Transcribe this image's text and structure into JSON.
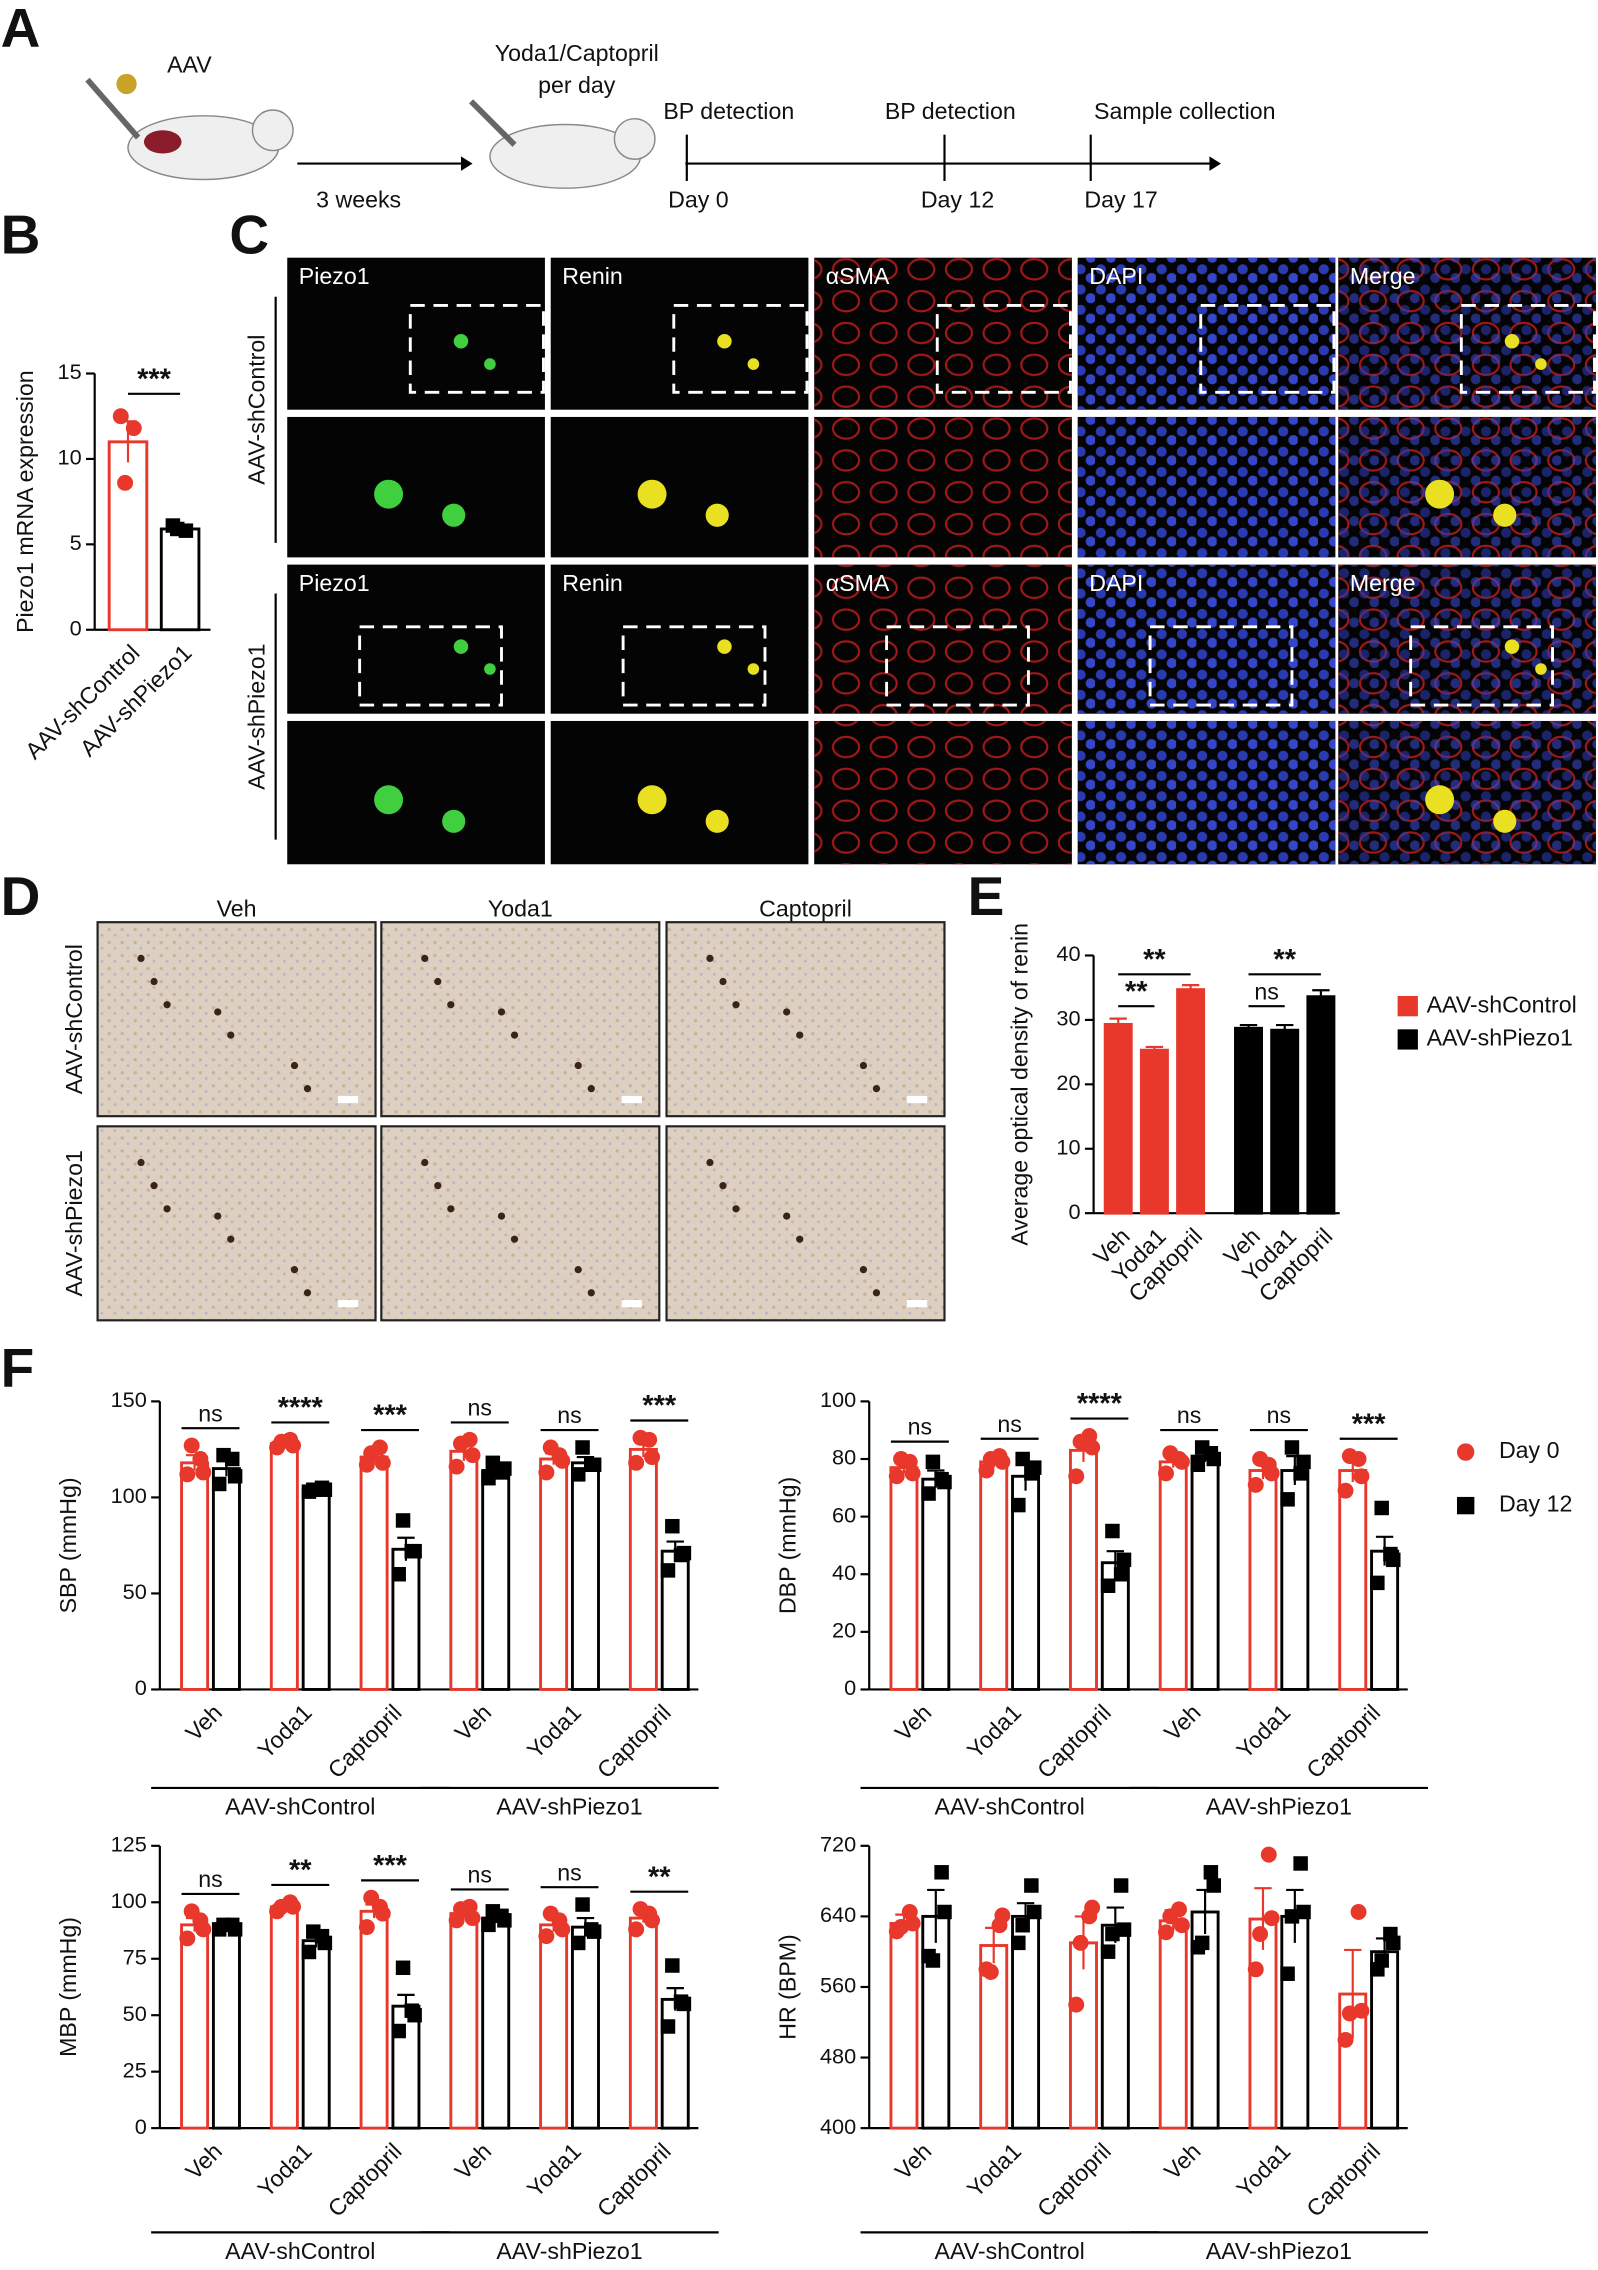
{
  "panels": [
    "A",
    "B",
    "C",
    "D",
    "E",
    "F"
  ],
  "schematic": {
    "vector": "AAV",
    "treatment": "Yoda1/Captopril",
    "frequency": "per day",
    "interval": "3 weeks",
    "events": [
      "BP detection",
      "BP detection",
      "Sample collection"
    ],
    "days": [
      "Day 0",
      "Day 12",
      "Day 17"
    ]
  },
  "staining": {
    "channels": [
      "Piezo1",
      "Renin",
      "αSMA",
      "DAPI",
      "Merge"
    ],
    "groups": [
      "AAV-shControl",
      "AAV-shPiezo1"
    ]
  },
  "ihc": {
    "columns": [
      "Veh",
      "Yoda1",
      "Captopril"
    ],
    "rows": [
      "AAV-shControl",
      "AAV-shPiezo1"
    ]
  },
  "chart_data": [
    {
      "type": "bar",
      "ylabel": "Piezo1 mRNA expression",
      "categories": [
        "AAV-shControl",
        "AAV-shPiezo1"
      ],
      "values": [
        11.0,
        5.9
      ],
      "errors": [
        1.2,
        0.2
      ],
      "points": [
        [
          12.5,
          11.8,
          8.6
        ],
        [
          6.1,
          5.8,
          5.9
        ]
      ],
      "colors": [
        "#e8372b",
        "#000000"
      ],
      "ylim": [
        0,
        15
      ],
      "yticks": [
        0,
        5,
        10,
        15
      ],
      "significance": [
        "***"
      ]
    },
    {
      "type": "bar",
      "ylabel": "Average optical density of renin",
      "categories": [
        "Veh",
        "Yoda1",
        "Captopril"
      ],
      "series": [
        {
          "name": "AAV-shControl",
          "color": "#e8372b",
          "values": [
            29.3,
            25.3,
            34.7
          ],
          "errors": [
            0.9,
            0.5,
            0.7
          ]
        },
        {
          "name": "AAV-shPiezo1",
          "color": "#000000",
          "values": [
            28.7,
            28.4,
            33.6
          ],
          "errors": [
            0.5,
            0.8,
            1.0
          ]
        }
      ],
      "ylim": [
        0,
        40
      ],
      "yticks": [
        0,
        10,
        20,
        30,
        40
      ],
      "significance": [
        "**",
        "**",
        "ns",
        "**"
      ]
    },
    {
      "type": "bar",
      "ylabel": "SBP (mmHg)",
      "categories": [
        "Veh",
        "Yoda1",
        "Captopril",
        "Veh",
        "Yoda1",
        "Captopril"
      ],
      "groups": [
        "AAV-shControl",
        "AAV-shPiezo1"
      ],
      "series": [
        {
          "name": "Day 0",
          "color": "#e8372b",
          "values": [
            118,
            128,
            121,
            124,
            120,
            125
          ],
          "errors": [
            4,
            1.5,
            3,
            5,
            3,
            4
          ],
          "points": [
            [
              112,
              120,
              127,
              113
            ],
            [
              126,
              130,
              129,
              127
            ],
            [
              117,
              126,
              123,
              118
            ],
            [
              116,
              130,
              128,
              122
            ],
            [
              113,
              122,
              126,
              119
            ],
            [
              118,
              130,
              131,
              121
            ]
          ]
        },
        {
          "name": "Day 12",
          "color": "#000000",
          "values": [
            115,
            104,
            73,
            114,
            118,
            72
          ],
          "errors": [
            4,
            1,
            6,
            2,
            3,
            5
          ],
          "points": [
            [
              107,
              120,
              122,
              111
            ],
            [
              103,
              105,
              104,
              104
            ],
            [
              60,
              72,
              88,
              72
            ],
            [
              110,
              113,
              118,
              115
            ],
            [
              112,
              117,
              126,
              117
            ],
            [
              62,
              70,
              85,
              71
            ]
          ]
        }
      ],
      "ylim": [
        0,
        150
      ],
      "yticks": [
        0,
        50,
        100,
        150
      ],
      "significance": [
        "ns",
        "****",
        "***",
        "ns",
        "ns",
        "***"
      ]
    },
    {
      "type": "bar",
      "ylabel": "DBP (mmHg)",
      "categories": [
        "Veh",
        "Yoda1",
        "Captopril",
        "Veh",
        "Yoda1",
        "Captopril"
      ],
      "groups": [
        "AAV-shControl",
        "AAV-shPiezo1"
      ],
      "series": [
        {
          "name": "Day 0",
          "color": "#e8372b",
          "values": [
            77,
            79,
            83,
            79,
            76,
            76
          ],
          "errors": [
            2,
            2,
            4,
            2,
            3,
            4
          ],
          "points": [
            [
              74,
              79,
              80,
              75
            ],
            [
              76,
              81,
              80,
              79
            ],
            [
              74,
              88,
              86,
              84
            ],
            [
              75,
              80,
              82,
              79
            ],
            [
              71,
              78,
              80,
              75
            ],
            [
              69,
              80,
              81,
              74
            ]
          ]
        },
        {
          "name": "Day 12",
          "color": "#000000",
          "values": [
            73,
            74,
            44,
            81,
            76,
            48
          ],
          "errors": [
            3,
            5,
            4,
            2,
            5,
            5
          ],
          "points": [
            [
              68,
              73,
              79,
              72
            ],
            [
              64,
              75,
              80,
              77
            ],
            [
              36,
              40,
              55,
              45
            ],
            [
              78,
              82,
              84,
              80
            ],
            [
              66,
              75,
              84,
              79
            ],
            [
              37,
              47,
              63,
              45
            ]
          ]
        }
      ],
      "ylim": [
        0,
        100
      ],
      "yticks": [
        0,
        20,
        40,
        60,
        80,
        100
      ],
      "significance": [
        "ns",
        "ns",
        "****",
        "ns",
        "ns",
        "***"
      ]
    },
    {
      "type": "bar",
      "ylabel": "MBP (mmHg)",
      "categories": [
        "Veh",
        "Yoda1",
        "Captopril",
        "Veh",
        "Yoda1",
        "Captopril"
      ],
      "groups": [
        "AAV-shControl",
        "AAV-shPiezo1"
      ],
      "series": [
        {
          "name": "Day 0",
          "color": "#e8372b",
          "values": [
            90,
            98,
            96,
            95,
            90,
            93
          ],
          "errors": [
            3,
            1.5,
            3,
            2,
            3,
            2
          ],
          "points": [
            [
              84,
              92,
              96,
              88
            ],
            [
              96,
              100,
              98,
              98
            ],
            [
              89,
              98,
              102,
              95
            ],
            [
              92,
              98,
              97,
              93
            ],
            [
              85,
              92,
              95,
              88
            ],
            [
              88,
              95,
              97,
              92
            ]
          ]
        },
        {
          "name": "Day 12",
          "color": "#000000",
          "values": [
            89,
            83,
            54,
            93,
            89,
            57
          ],
          "errors": [
            1,
            3,
            5,
            2,
            4,
            5
          ],
          "points": [
            [
              88,
              90,
              90,
              88
            ],
            [
              78,
              85,
              87,
              82
            ],
            [
              43,
              52,
              71,
              50
            ],
            [
              90,
              94,
              96,
              92
            ],
            [
              82,
              88,
              99,
              87
            ],
            [
              45,
              56,
              72,
              55
            ]
          ]
        }
      ],
      "ylim": [
        0,
        125
      ],
      "yticks": [
        0,
        25,
        50,
        75,
        100,
        125
      ],
      "significance": [
        "ns",
        "**",
        "***",
        "ns",
        "ns",
        "**"
      ]
    },
    {
      "type": "bar",
      "ylabel": "HR (BPM)",
      "categories": [
        "Veh",
        "Yoda1",
        "Captopril",
        "Veh",
        "Yoda1",
        "Captopril"
      ],
      "groups": [
        "AAV-shControl",
        "AAV-shPiezo1"
      ],
      "series": [
        {
          "name": "Day 0",
          "color": "#e8372b",
          "values": [
            632,
            607,
            610,
            635,
            637,
            552
          ],
          "errors": [
            10,
            20,
            30,
            12,
            35,
            50
          ],
          "points": [
            [
              623,
              645,
              628,
              632
            ],
            [
              580,
              630,
              577,
              641
            ],
            [
              540,
              640,
              610,
              650
            ],
            [
              622,
              648,
              640,
              630
            ],
            [
              580,
              710,
              620,
              638
            ],
            [
              500,
              645,
              530,
              533
            ]
          ]
        },
        {
          "name": "Day 12",
          "color": "#000000",
          "values": [
            640,
            640,
            630,
            645,
            640,
            600
          ],
          "errors": [
            30,
            15,
            20,
            25,
            30,
            15
          ],
          "points": [
            [
              595,
              690,
              590,
              645
            ],
            [
              610,
              675,
              630,
              645
            ],
            [
              600,
              675,
              620,
              625
            ],
            [
              605,
              690,
              610,
              675
            ],
            [
              575,
              700,
              640,
              645
            ],
            [
              580,
              620,
              590,
              610
            ]
          ]
        }
      ],
      "ylim": [
        400,
        720
      ],
      "yticks": [
        400,
        480,
        560,
        640,
        720
      ]
    }
  ]
}
